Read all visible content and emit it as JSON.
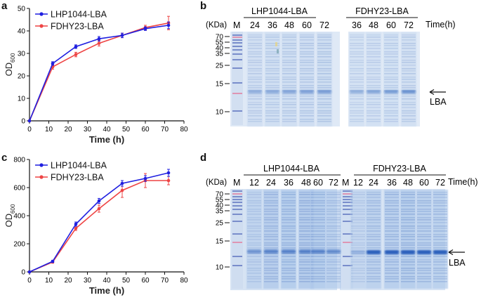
{
  "panels": {
    "a": {
      "letter": "a"
    },
    "b": {
      "letter": "b"
    },
    "c": {
      "letter": "c"
    },
    "d": {
      "letter": "d"
    }
  },
  "chart_data": [
    {
      "type": "line",
      "panel": "a",
      "x": [
        0,
        12,
        24,
        36,
        48,
        60,
        72
      ],
      "series": [
        {
          "name": "LHP1044-LBA",
          "color": "#1f1fe0",
          "values": [
            0,
            25.5,
            33,
            36.5,
            38,
            41,
            42.5
          ],
          "errors": [
            0,
            0.8,
            0.8,
            1.0,
            1.0,
            0.8,
            1.5
          ]
        },
        {
          "name": "FDHY23-LBA",
          "color": "#ee4444",
          "values": [
            0,
            24,
            29.5,
            34.5,
            38,
            41.5,
            43.5
          ],
          "errors": [
            0,
            1.0,
            1.0,
            1.2,
            1.0,
            1.0,
            3.0
          ]
        }
      ],
      "xlabel": "Time (h)",
      "ylabel": "OD",
      "ylabel_sub": "600",
      "xlim": [
        0,
        80
      ],
      "ylim": [
        0,
        50
      ],
      "xticks": [
        0,
        10,
        20,
        30,
        40,
        50,
        60,
        70,
        80
      ],
      "yticks": [
        0,
        10,
        20,
        30,
        40,
        50
      ],
      "legend": "top-left"
    },
    {
      "type": "line",
      "panel": "c",
      "x": [
        0,
        12,
        24,
        36,
        48,
        60,
        72
      ],
      "series": [
        {
          "name": "LHP1044-LBA",
          "color": "#1f1fe0",
          "values": [
            0,
            75,
            340,
            505,
            630,
            665,
            705
          ],
          "errors": [
            0,
            8,
            15,
            18,
            20,
            20,
            25
          ]
        },
        {
          "name": "FDHY23-LBA",
          "color": "#ee4444",
          "values": [
            0,
            70,
            310,
            450,
            580,
            650,
            650
          ],
          "errors": [
            0,
            8,
            15,
            25,
            50,
            50,
            30
          ]
        }
      ],
      "xlabel": "Time (h)",
      "ylabel": "OD",
      "ylabel_sub": "600",
      "xlim": [
        0,
        80
      ],
      "ylim": [
        0,
        800
      ],
      "xticks": [
        0,
        10,
        20,
        30,
        40,
        50,
        60,
        70,
        80
      ],
      "yticks": [
        0,
        200,
        400,
        600,
        800
      ],
      "legend": "top-left"
    }
  ],
  "gels": {
    "b": {
      "kda_label": "(KDa)",
      "marker_label": "M",
      "group1_label": "LHP1044-LBA",
      "group2_label": "FDHY23-LBA",
      "group1_lanes": [
        "24",
        "36",
        "48",
        "60",
        "72"
      ],
      "group2_lanes": [
        "36",
        "48",
        "60",
        "72"
      ],
      "time_label": "Time(h)",
      "mw_ticks": [
        "70",
        "55",
        "40",
        "35",
        "25",
        "15",
        "10"
      ],
      "band_label": "LBA"
    },
    "d": {
      "kda_label": "(KDa)",
      "marker_label": "M",
      "marker_label_2": "M",
      "group1_label": "LHP1044-LBA",
      "group2_label": "FDHY23-LBA",
      "group1_lanes": [
        "12",
        "24",
        "36",
        "48",
        "60",
        "72"
      ],
      "group2_lanes": [
        "12",
        "24",
        "36",
        "48",
        "60",
        "72"
      ],
      "time_label": "Time(h)",
      "mw_ticks": [
        "70",
        "55",
        "40",
        "35",
        "25",
        "15",
        "10"
      ],
      "band_label": "LBA"
    }
  }
}
